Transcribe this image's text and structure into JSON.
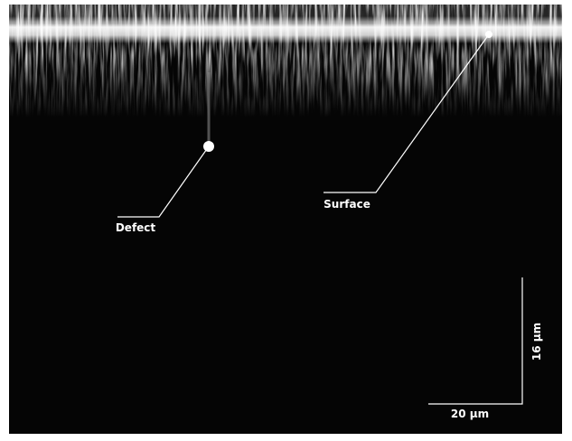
{
  "annotations": [
    {
      "label": "Defect"
    },
    {
      "label": "Surface"
    }
  ],
  "scale_bar": {
    "horizontal_label": "20 µm",
    "vertical_label": "16 µm"
  }
}
